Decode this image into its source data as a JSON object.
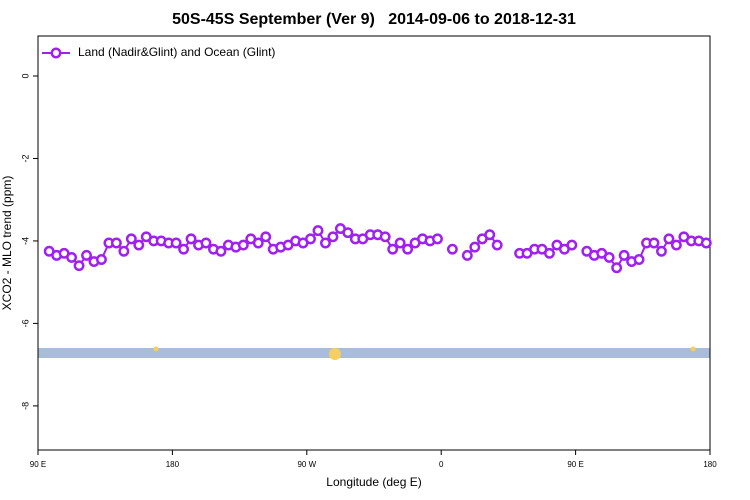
{
  "chart_data": {
    "type": "line",
    "title": "50S-45S September (Ver 9)   2014-09-06 to 2018-12-31",
    "x_label": "Longitude (deg E)",
    "y_label": "XCO2 - MLO trend (ppm)",
    "x": [
      97.5,
      102.5,
      107.5,
      112.5,
      117.5,
      122.5,
      127.5,
      132.5,
      137.5,
      142.5,
      147.5,
      152.5,
      157.5,
      162.5,
      167.5,
      172.5,
      177.5,
      182.5,
      187.5,
      192.5,
      197.5,
      202.5,
      207.5,
      212.5,
      217.5,
      222.5,
      227.5,
      232.5,
      237.5,
      242.5,
      247.5,
      252.5,
      257.5,
      262.5,
      267.5,
      272.5,
      277.5,
      282.5,
      287.5,
      292.5,
      297.5,
      302.5,
      307.5,
      312.5,
      317.5,
      322.5,
      327.5,
      332.5,
      337.5,
      342.5,
      347.5,
      352.5,
      357.5,
      362.5,
      367.5,
      372.5,
      377.5,
      382.5,
      387.5,
      392.5,
      397.5,
      402.5,
      407.5,
      412.5,
      417.5,
      422.5,
      427.5,
      432.5,
      437.5,
      442.5,
      447.5,
      452.5,
      457.5,
      462.5,
      467.5,
      472.5,
      477.5,
      482.5,
      487.5,
      492.5,
      497.5,
      502.5,
      507.5,
      512.5,
      517.5,
      522.5,
      527.5,
      532.5,
      537.5
    ],
    "series": [
      {
        "name": "Land (Nadir&Glint) and Ocean (Glint)",
        "color": "#a020f0",
        "values": [
          -4.25,
          -4.35,
          -4.3,
          -4.4,
          -4.6,
          -4.35,
          -4.5,
          -4.45,
          -4.05,
          -4.05,
          -4.25,
          -3.95,
          -4.1,
          -3.9,
          -4.0,
          -4.0,
          -4.05,
          -4.05,
          -4.2,
          -3.95,
          -4.1,
          -4.05,
          -4.2,
          -4.25,
          -4.1,
          -4.15,
          -4.1,
          -3.95,
          -4.05,
          -3.9,
          -4.2,
          -4.15,
          -4.1,
          -4.0,
          -4.05,
          -3.95,
          -3.75,
          -4.05,
          -3.9,
          -3.7,
          -3.8,
          -3.95,
          -3.95,
          -3.85,
          -3.85,
          -3.9,
          -4.2,
          -4.05,
          -4.2,
          -4.05,
          -3.95,
          -4.0,
          -3.95,
          null,
          -4.2,
          null,
          -4.35,
          -4.15,
          -3.95,
          -3.85,
          -4.1,
          null,
          null,
          -4.3,
          -4.3,
          -4.2,
          -4.2,
          -4.3,
          -4.1,
          -4.2,
          -4.1,
          null,
          -4.25,
          -4.35,
          -4.3,
          -4.4,
          -4.65,
          -4.35,
          -4.5,
          -4.45,
          -4.05,
          -4.05,
          -4.25,
          -3.95,
          -4.1,
          -3.9,
          -4.0,
          -4.0,
          -4.05
        ]
      }
    ],
    "xlim": [
      90,
      540
    ],
    "xticks": [
      {
        "value": 90,
        "label": "90 E"
      },
      180,
      {
        "value": 270,
        "label": "90 W"
      },
      {
        "value": 360,
        "label": "0"
      },
      {
        "value": 450,
        "label": "90 E"
      },
      180
    ],
    "ylim": [
      -9.07,
      0.97
    ],
    "yticks": [
      0,
      -2,
      -4,
      -6,
      -8
    ],
    "legend": "top-left"
  }
}
